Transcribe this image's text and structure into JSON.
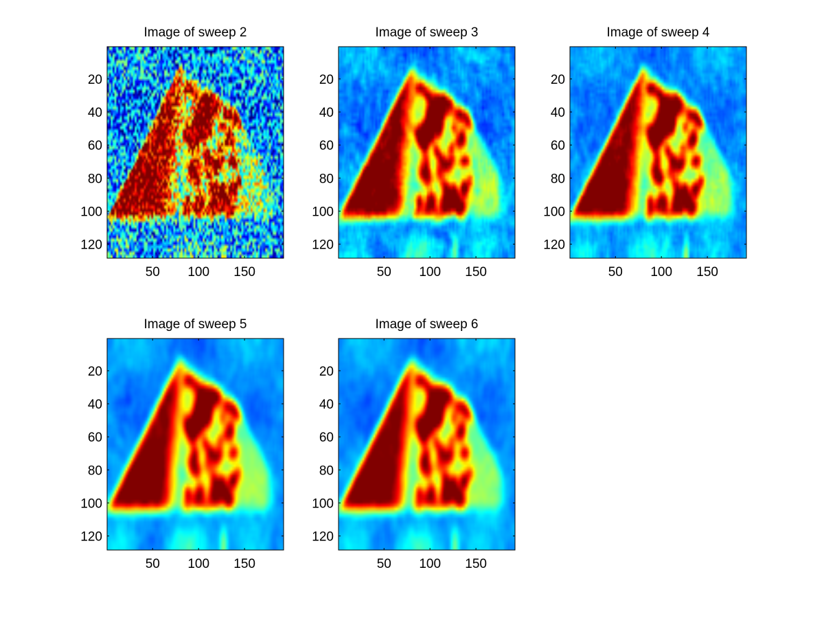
{
  "figure": {
    "background": "#ffffff"
  },
  "chart_data": [
    {
      "type": "heatmap",
      "title": "Image of sweep  2",
      "xlim": [
        0.5,
        192.5
      ],
      "ylim": [
        0.5,
        128.5
      ],
      "xticks": [
        50,
        100,
        150
      ],
      "yticks": [
        20,
        40,
        60,
        80,
        100,
        120
      ],
      "y_direction": "reversed",
      "colormap": "jet",
      "noise_level": 0.26,
      "blur_level": 0
    },
    {
      "type": "heatmap",
      "title": "Image of sweep  3",
      "xlim": [
        0.5,
        192.5
      ],
      "ylim": [
        0.5,
        128.5
      ],
      "xticks": [
        50,
        100,
        150
      ],
      "yticks": [
        20,
        40,
        60,
        80,
        100,
        120
      ],
      "y_direction": "reversed",
      "colormap": "jet",
      "noise_level": 0.13,
      "blur_level": 1
    },
    {
      "type": "heatmap",
      "title": "Image of sweep  4",
      "xlim": [
        0.5,
        192.5
      ],
      "ylim": [
        0.5,
        128.5
      ],
      "xticks": [
        50,
        100,
        150
      ],
      "yticks": [
        20,
        40,
        60,
        80,
        100,
        120
      ],
      "y_direction": "reversed",
      "colormap": "jet",
      "noise_level": 0.1,
      "blur_level": 1
    },
    {
      "type": "heatmap",
      "title": "Image of sweep  5",
      "xlim": [
        0.5,
        192.5
      ],
      "ylim": [
        0.5,
        128.5
      ],
      "xticks": [
        50,
        100,
        150
      ],
      "yticks": [
        20,
        40,
        60,
        80,
        100,
        120
      ],
      "y_direction": "reversed",
      "colormap": "jet",
      "noise_level": 0.08,
      "blur_level": 2
    },
    {
      "type": "heatmap",
      "title": "Image of sweep  6",
      "xlim": [
        0.5,
        192.5
      ],
      "ylim": [
        0.5,
        128.5
      ],
      "xticks": [
        50,
        100,
        150
      ],
      "yticks": [
        20,
        40,
        60,
        80,
        100,
        120
      ],
      "y_direction": "reversed",
      "colormap": "jet",
      "noise_level": 0.08,
      "blur_level": 2
    }
  ]
}
